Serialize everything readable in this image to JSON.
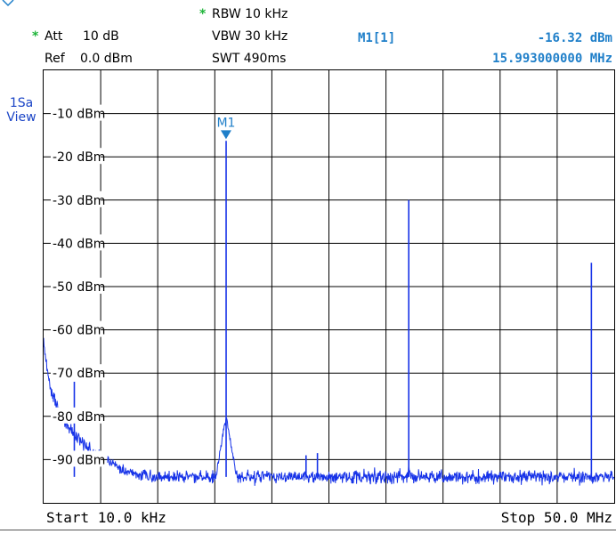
{
  "settings": {
    "rbw": "RBW 10 kHz",
    "rbw_star": "*",
    "vbw": "VBW 30 kHz",
    "swt": "SWT 490ms",
    "att_star": "*",
    "att_label": "Att",
    "att_value": "10 dB",
    "ref_label": "Ref",
    "ref_value": "0.0 dBm"
  },
  "marker_readout": {
    "name": "M1[1]",
    "level": "-16.32 dBm",
    "frequency": "15.993000000 MHz"
  },
  "side_label": {
    "line1": "1Sa",
    "line2": "View"
  },
  "footer": {
    "start": "Start 10.0 kHz",
    "stop": "Stop 50.0 MHz"
  },
  "colors": {
    "trace": "#1733e8",
    "marker": "#1f7fc9",
    "grid": "#000000",
    "star": "#1fb53a"
  },
  "chart_data": {
    "type": "line",
    "x_range_mhz": [
      0.01,
      50.0
    ],
    "y_range_dbm": [
      -100,
      0
    ],
    "grid": true,
    "y_tick_labels": [
      "-10 dBm",
      "-20 dBm",
      "-30 dBm",
      "-40 dBm",
      "-50 dBm",
      "-60 dBm",
      "-70 dBm",
      "-80 dBm",
      "-90 dBm"
    ],
    "y_tick_values": [
      -10,
      -20,
      -30,
      -40,
      -50,
      -60,
      -70,
      -80,
      -90
    ],
    "marker": {
      "label": "M1",
      "x": 15.993,
      "y": -16.32
    },
    "noise_floor_dbm": -94,
    "spurs": [
      {
        "x": 16.0,
        "y": -16.3
      },
      {
        "x": 32.0,
        "y": -30.0
      },
      {
        "x": 48.0,
        "y": -44.5
      },
      {
        "x": 2.7,
        "y": -72.0
      },
      {
        "x": 23.0,
        "y": -89.0
      },
      {
        "x": 24.0,
        "y": -88.5
      }
    ],
    "skirts": [
      {
        "x": 16.0,
        "peak": -80,
        "width": 0.9
      },
      {
        "x": 32.0,
        "peak": -91,
        "width": 0.5
      }
    ]
  }
}
